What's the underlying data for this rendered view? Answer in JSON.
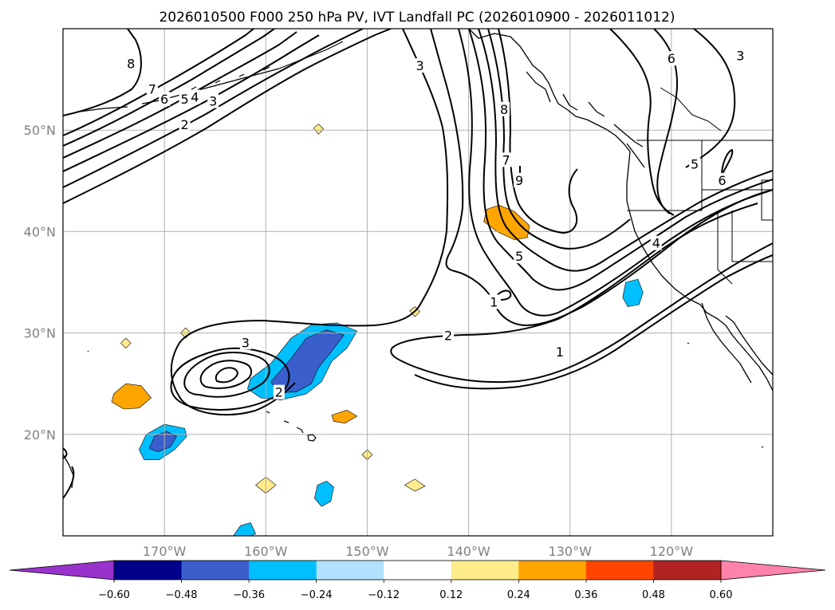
{
  "title": "2026010500 F000 250 hPa PV, IVT Landfall PC (2026010900 - 2026011012)",
  "colors": {
    "land_outline": "#000000",
    "grid": "#b0b0b0",
    "contour": "#000000",
    "tick_label": "#808080"
  },
  "chart_data": {
    "type": "heatmap",
    "projection": "PlateCarree",
    "lon_range": [
      -180,
      -110
    ],
    "lat_range": [
      10,
      60
    ],
    "lon_ticks": [
      -170,
      -160,
      -150,
      -140,
      -130,
      -120
    ],
    "lat_ticks": [
      20,
      30,
      40,
      50
    ],
    "lon_tick_labels": [
      "170°W",
      "160°W",
      "150°W",
      "140°W",
      "130°W",
      "120°W"
    ],
    "lat_tick_labels": [
      "20°N",
      "30°N",
      "40°N",
      "50°N"
    ],
    "fill_field": "IVT landfall PC",
    "contour_field": "250 hPa PV",
    "colorbar": {
      "extend": "both",
      "levels": [
        -0.6,
        -0.48,
        -0.36,
        -0.24,
        -0.12,
        0.12,
        0.24,
        0.36,
        0.48,
        0.6
      ],
      "tick_labels": [
        "−0.60",
        "−0.48",
        "−0.36",
        "−0.24",
        "−0.12",
        "0.12",
        "0.24",
        "0.36",
        "0.48",
        "0.60"
      ],
      "under_color": "#9932cc",
      "colors": [
        "#00008b",
        "#3a5fcd",
        "#00bfff",
        "#b0e2ff",
        "#ffffff",
        "#ffec8b",
        "#ffa500",
        "#ff4500",
        "#b22222"
      ],
      "over_color": "#ff82ab"
    },
    "contour_labels": [
      {
        "text": "8",
        "lon": -173.3,
        "lat": 56.5
      },
      {
        "text": "7",
        "lon": -171.2,
        "lat": 54.0
      },
      {
        "text": "6",
        "lon": -170.0,
        "lat": 53.0
      },
      {
        "text": "5",
        "lon": -168.0,
        "lat": 53.0
      },
      {
        "text": "4",
        "lon": -167.0,
        "lat": 53.2
      },
      {
        "text": "3",
        "lon": -165.2,
        "lat": 52.8
      },
      {
        "text": "2",
        "lon": -168.0,
        "lat": 50.5
      },
      {
        "text": "3",
        "lon": -144.8,
        "lat": 56.3
      },
      {
        "text": "8",
        "lon": -136.5,
        "lat": 52.0
      },
      {
        "text": "7",
        "lon": -136.3,
        "lat": 47.0
      },
      {
        "text": "9",
        "lon": -135.0,
        "lat": 45.0
      },
      {
        "text": "5",
        "lon": -135.0,
        "lat": 37.5
      },
      {
        "text": "1",
        "lon": -137.5,
        "lat": 33.0
      },
      {
        "text": "2",
        "lon": -142.0,
        "lat": 29.7
      },
      {
        "text": "1",
        "lon": -131.0,
        "lat": 28.1
      },
      {
        "text": "3",
        "lon": -162.0,
        "lat": 29.0
      },
      {
        "text": "2",
        "lon": -158.7,
        "lat": 24.1
      },
      {
        "text": "6",
        "lon": -120.0,
        "lat": 57.0
      },
      {
        "text": "3",
        "lon": -113.2,
        "lat": 57.3
      },
      {
        "text": "5",
        "lon": -117.7,
        "lat": 46.6
      },
      {
        "text": "6",
        "lon": -115.0,
        "lat": 45.0
      },
      {
        "text": "4",
        "lon": -121.5,
        "lat": 38.8
      }
    ],
    "fill_regions": [
      {
        "value": -0.3,
        "points": [
          [
            -161.5,
            25.5
          ],
          [
            -159.5,
            27
          ],
          [
            -157.5,
            29.5
          ],
          [
            -155.5,
            30.8
          ],
          [
            -153,
            31
          ],
          [
            -151,
            30.2
          ],
          [
            -152,
            28.5
          ],
          [
            -153.5,
            27.2
          ],
          [
            -154.5,
            25.2
          ],
          [
            -156,
            24
          ],
          [
            -158.5,
            23.4
          ],
          [
            -160.5,
            23.6
          ],
          [
            -161.8,
            24.5
          ]
        ]
      },
      {
        "value": -0.42,
        "points": [
          [
            -159.5,
            25.2
          ],
          [
            -157.5,
            27.5
          ],
          [
            -156,
            29.5
          ],
          [
            -154,
            30.3
          ],
          [
            -152.3,
            29.8
          ],
          [
            -153.5,
            28.2
          ],
          [
            -154.8,
            26.6
          ],
          [
            -155.5,
            25
          ],
          [
            -157,
            24.2
          ],
          [
            -158.8,
            24.1
          ]
        ]
      },
      {
        "value": -0.3,
        "points": [
          [
            -172.5,
            18.5
          ],
          [
            -171.8,
            20
          ],
          [
            -170,
            21
          ],
          [
            -168,
            20.6
          ],
          [
            -167.8,
            19.8
          ],
          [
            -169,
            18.5
          ],
          [
            -170.5,
            17.5
          ],
          [
            -172,
            17.5
          ]
        ]
      },
      {
        "value": -0.42,
        "points": [
          [
            -171.5,
            18.6
          ],
          [
            -171,
            19.8
          ],
          [
            -169.8,
            20.3
          ],
          [
            -168.8,
            19.8
          ],
          [
            -169.4,
            18.8
          ],
          [
            -170.6,
            18.3
          ]
        ]
      },
      {
        "value": -0.3,
        "points": [
          [
            -124.5,
            35
          ],
          [
            -123.3,
            35.3
          ],
          [
            -122.8,
            34
          ],
          [
            -123.2,
            32.8
          ],
          [
            -124.3,
            32.6
          ],
          [
            -124.8,
            33.5
          ]
        ]
      },
      {
        "value": -0.3,
        "points": [
          [
            -155.2,
            13.7
          ],
          [
            -154.9,
            15
          ],
          [
            -154,
            15.4
          ],
          [
            -153.3,
            14.8
          ],
          [
            -153.6,
            13.4
          ],
          [
            -154.5,
            12.9
          ]
        ]
      },
      {
        "value": -0.3,
        "points": [
          [
            -163.2,
            10
          ],
          [
            -162.5,
            11
          ],
          [
            -161.5,
            11.3
          ],
          [
            -161,
            10.2
          ],
          [
            -161.5,
            10
          ]
        ]
      },
      {
        "value": 0.3,
        "points": [
          [
            -138.2,
            42.2
          ],
          [
            -137,
            42.6
          ],
          [
            -135.5,
            42
          ],
          [
            -134,
            40.6
          ],
          [
            -134.2,
            39.4
          ],
          [
            -135.5,
            39.2
          ],
          [
            -137.2,
            40
          ],
          [
            -138.5,
            41
          ]
        ]
      },
      {
        "value": 0.3,
        "points": [
          [
            -175,
            24
          ],
          [
            -173.8,
            25
          ],
          [
            -172.3,
            24.8
          ],
          [
            -171.3,
            23.6
          ],
          [
            -172.5,
            22.6
          ],
          [
            -174,
            22.5
          ],
          [
            -175.2,
            23.2
          ]
        ]
      },
      {
        "value": 0.3,
        "points": [
          [
            -153.5,
            21.9
          ],
          [
            -152,
            22.4
          ],
          [
            -151,
            21.8
          ],
          [
            -152.2,
            21.1
          ],
          [
            -153.3,
            21.3
          ]
        ]
      },
      {
        "value": 0.18,
        "points": [
          [
            -155.3,
            50.2
          ],
          [
            -154.8,
            50.6
          ],
          [
            -154.3,
            50.1
          ],
          [
            -154.8,
            49.6
          ]
        ]
      },
      {
        "value": 0.18,
        "points": [
          [
            -145.8,
            32.2
          ],
          [
            -145.3,
            32.6
          ],
          [
            -144.8,
            32.1
          ],
          [
            -145.3,
            31.6
          ]
        ]
      },
      {
        "value": 0.18,
        "points": [
          [
            -168.4,
            30
          ],
          [
            -167.9,
            30.5
          ],
          [
            -167.4,
            30
          ],
          [
            -167.9,
            29.5
          ]
        ]
      },
      {
        "value": 0.18,
        "points": [
          [
            -174.3,
            29
          ],
          [
            -173.8,
            29.5
          ],
          [
            -173.3,
            29
          ],
          [
            -173.8,
            28.5
          ]
        ]
      },
      {
        "value": 0.18,
        "points": [
          [
            -150.5,
            18
          ],
          [
            -150,
            18.5
          ],
          [
            -149.5,
            18
          ],
          [
            -150,
            17.5
          ]
        ]
      },
      {
        "value": 0.18,
        "points": [
          [
            -161,
            15
          ],
          [
            -160,
            15.8
          ],
          [
            -159,
            15
          ],
          [
            -160,
            14.2
          ]
        ]
      },
      {
        "value": 0.18,
        "points": [
          [
            -146.3,
            15
          ],
          [
            -145.3,
            15.6
          ],
          [
            -144.3,
            14.9
          ],
          [
            -145.3,
            14.4
          ]
        ]
      }
    ]
  }
}
